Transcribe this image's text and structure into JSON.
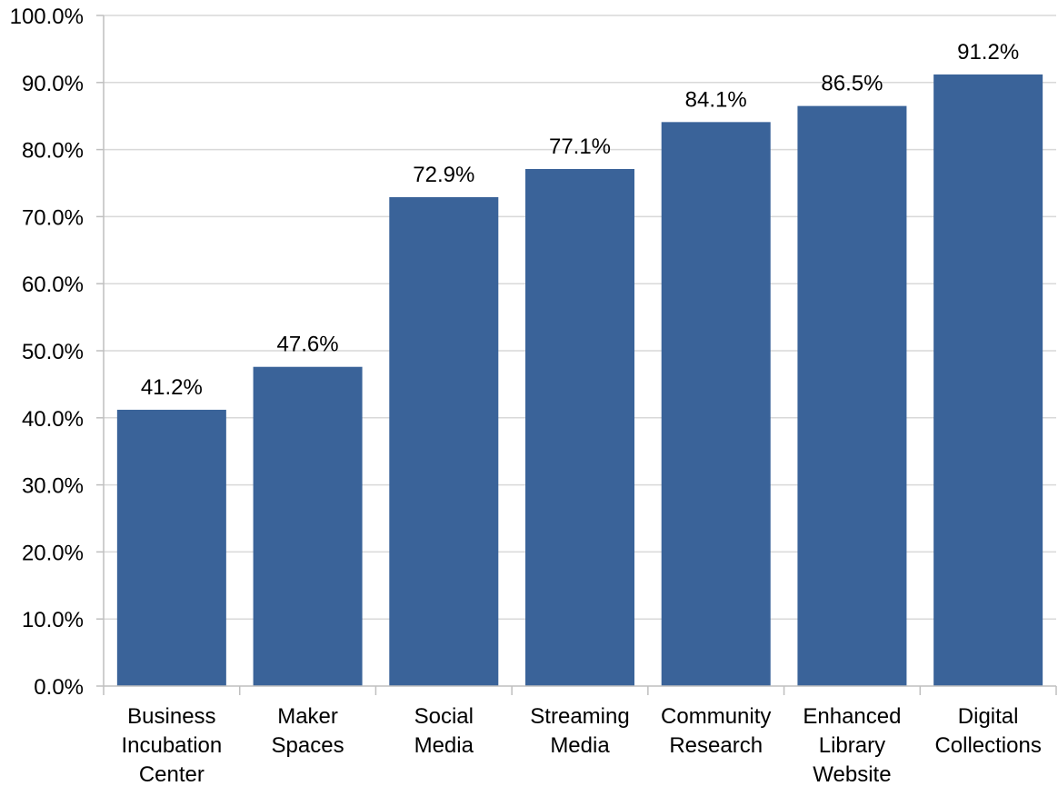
{
  "chart_data": {
    "type": "bar",
    "categories": [
      [
        "Business",
        "Incubation",
        "Center"
      ],
      [
        "Maker",
        "Spaces"
      ],
      [
        "Social",
        "Media"
      ],
      [
        "Streaming",
        "Media"
      ],
      [
        "Community",
        "Research"
      ],
      [
        "Enhanced",
        "Library",
        "Website"
      ],
      [
        "Digital",
        "Collections"
      ]
    ],
    "values": [
      41.2,
      47.6,
      72.9,
      77.1,
      84.1,
      86.5,
      91.2
    ],
    "data_labels": [
      "41.2%",
      "47.6%",
      "72.9%",
      "77.1%",
      "84.1%",
      "86.5%",
      "91.2%"
    ],
    "title": "",
    "xlabel": "",
    "ylabel": "",
    "ylim": [
      0,
      100
    ],
    "yticks": [
      0,
      10,
      20,
      30,
      40,
      50,
      60,
      70,
      80,
      90,
      100
    ],
    "ytick_labels": [
      "0.0%",
      "10.0%",
      "20.0%",
      "30.0%",
      "40.0%",
      "50.0%",
      "60.0%",
      "70.0%",
      "80.0%",
      "90.0%",
      "100.0%"
    ],
    "grid": true,
    "legend": "none",
    "colors": {
      "bar": "#3a6399",
      "grid": "#d9d9d9",
      "axis": "#bfbfbf"
    }
  }
}
